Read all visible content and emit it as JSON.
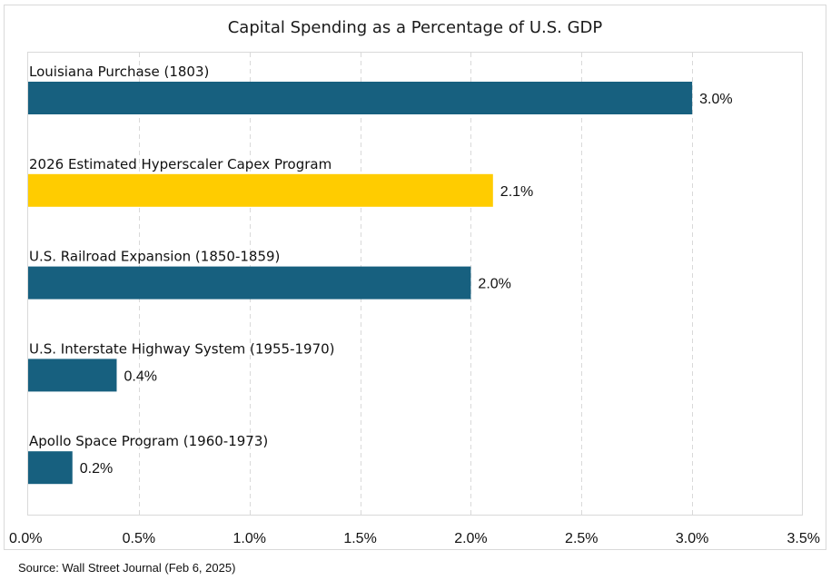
{
  "chart_data": {
    "type": "bar",
    "orientation": "horizontal",
    "title": "Capital Spending as a Percentage of U.S. GDP",
    "xlabel": "",
    "ylabel": "",
    "categories": [
      "Louisiana Purchase (1803)",
      "2026 Estimated Hyperscaler Capex Program",
      "U.S. Railroad Expansion (1850-1859)",
      "U.S. Interstate Highway System (1955-1970)",
      "Apollo Space Program (1960-1973)"
    ],
    "values": [
      3.0,
      2.1,
      2.0,
      0.4,
      0.2
    ],
    "data_labels": [
      "3.0%",
      "2.1%",
      "2.0%",
      "0.4%",
      "0.2%"
    ],
    "bar_colors": [
      "#17607f",
      "#ffcc00",
      "#17607f",
      "#17607f",
      "#17607f"
    ],
    "xlim": [
      0,
      3.5
    ],
    "xticks": [
      0,
      0.5,
      1.0,
      1.5,
      2.0,
      2.5,
      3.0,
      3.5
    ],
    "xtick_labels": [
      "0.0%",
      "0.5%",
      "1.0%",
      "1.5%",
      "2.0%",
      "2.5%",
      "3.0%",
      "3.5%"
    ],
    "grid": "vertical dashed",
    "legend": "none",
    "highlight_color": "#ffcc00",
    "primary_color": "#17607f"
  },
  "footer": {
    "source": "Source: Wall Street Journal (Feb 6, 2025)"
  }
}
